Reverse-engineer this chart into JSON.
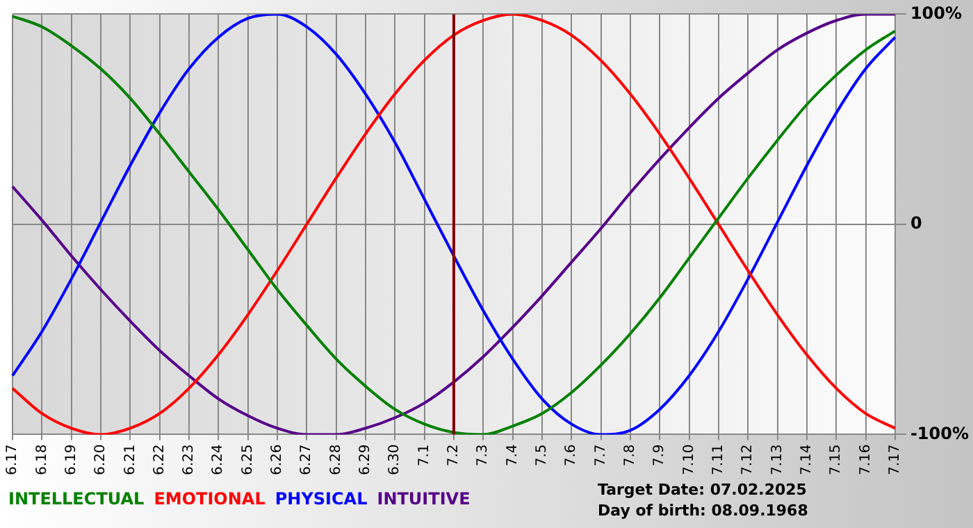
{
  "chart_data": {
    "type": "line",
    "categories": [
      "6.17",
      "6.18",
      "6.19",
      "6.20",
      "6.21",
      "6.22",
      "6.23",
      "6.24",
      "6.25",
      "6.26",
      "6.27",
      "6.28",
      "6.29",
      "6.30",
      "7.1",
      "7.2",
      "7.3",
      "7.4",
      "7.5",
      "7.6",
      "7.7",
      "7.8",
      "7.9",
      "7.10",
      "7.11",
      "7.12",
      "7.13",
      "7.14",
      "7.15",
      "7.16",
      "7.17"
    ],
    "series": [
      {
        "name": "INTELLECTUAL",
        "color": "#008000",
        "values": [
          99,
          94,
          85,
          74,
          60,
          43,
          25,
          7,
          -12,
          -31,
          -48,
          -64,
          -77,
          -88,
          -95,
          -99,
          -100,
          -96,
          -90,
          -80,
          -67,
          -52,
          -35,
          -16,
          3,
          22,
          40,
          57,
          71,
          83,
          92
        ]
      },
      {
        "name": "EMOTIONAL",
        "color": "#ff0000",
        "values": [
          -78,
          -90,
          -97,
          -100,
          -97,
          -90,
          -78,
          -62,
          -43,
          -22,
          0,
          22,
          43,
          62,
          78,
          90,
          97,
          100,
          97,
          90,
          78,
          62,
          43,
          22,
          0,
          -22,
          -43,
          -62,
          -78,
          -90,
          -97
        ]
      },
      {
        "name": "PHYSICAL",
        "color": "#0000ff",
        "values": [
          -72,
          -51,
          -26,
          1,
          28,
          53,
          74,
          89,
          98,
          100,
          94,
          81,
          62,
          39,
          12,
          -15,
          -41,
          -64,
          -83,
          -95,
          -100,
          -98,
          -88,
          -72,
          -51,
          -26,
          1,
          28,
          53,
          74,
          89
        ]
      },
      {
        "name": "INTUITIVE",
        "color": "#550088",
        "values": [
          18,
          2,
          -15,
          -31,
          -46,
          -60,
          -72,
          -83,
          -91,
          -97,
          -100,
          -100,
          -97,
          -92,
          -85,
          -75,
          -63,
          -49,
          -34,
          -18,
          -2,
          15,
          31,
          46,
          60,
          72,
          83,
          91,
          97,
          100,
          100
        ]
      }
    ],
    "ylim": [
      -100,
      100
    ],
    "yticks": [
      {
        "value": 100,
        "label": "100%"
      },
      0,
      {
        "value": -100,
        "label": "-100%"
      }
    ],
    "grid": true,
    "marker": "none",
    "legend": "bottom",
    "ref_lines": [
      {
        "axis": "x",
        "value": "7.2",
        "color": "#800000"
      }
    ],
    "annotations": [
      "Target Date: 07.02.2025",
      "Day of birth: 08.09.1968"
    ]
  }
}
